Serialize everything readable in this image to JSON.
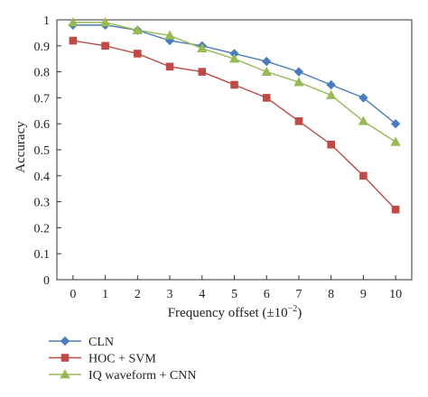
{
  "chart_data": {
    "type": "line",
    "xlabel": "Frequency offset (±10",
    "xlabel_exponent": "−2",
    "xlabel_suffix": ")",
    "ylabel": "Accuracy",
    "x": [
      0,
      1,
      2,
      3,
      4,
      5,
      6,
      7,
      8,
      9,
      10
    ],
    "xlim": [
      -0.5,
      10.5
    ],
    "ylim": [
      0,
      1
    ],
    "x_ticks": [
      "0",
      "1",
      "2",
      "3",
      "4",
      "5",
      "6",
      "7",
      "8",
      "9",
      "10"
    ],
    "y_ticks": [
      "0",
      "0.1",
      "0.2",
      "0.3",
      "0.4",
      "0.5",
      "0.6",
      "0.7",
      "0.8",
      "0.9",
      "1"
    ],
    "grid": false,
    "legend_position": "bottom-left, below plot",
    "series": [
      {
        "name": "CLN",
        "color": "#4a7ebb",
        "marker": "diamond",
        "values": [
          0.98,
          0.98,
          0.96,
          0.92,
          0.9,
          0.87,
          0.84,
          0.8,
          0.75,
          0.7,
          0.6
        ]
      },
      {
        "name": "HOC + SVM",
        "color": "#be4b48",
        "marker": "square",
        "values": [
          0.92,
          0.9,
          0.87,
          0.82,
          0.8,
          0.75,
          0.7,
          0.61,
          0.52,
          0.4,
          0.27
        ]
      },
      {
        "name": "IQ waveform + CNN",
        "color": "#98b954",
        "marker": "triangle",
        "values": [
          0.99,
          0.99,
          0.96,
          0.94,
          0.89,
          0.85,
          0.8,
          0.76,
          0.71,
          0.61,
          0.53
        ]
      }
    ]
  }
}
